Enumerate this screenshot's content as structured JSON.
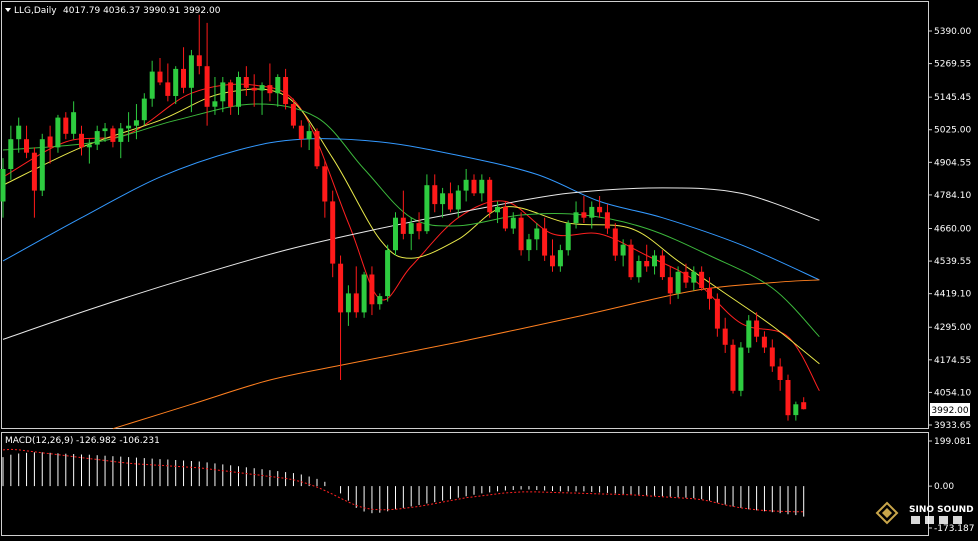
{
  "header": {
    "symbol": "LLG,Daily",
    "ohlc": "4017.79 4036.37 3990.91 3992.00"
  },
  "macd_header": {
    "label": "MACD(12,26,9)",
    "values": "-126.982 -106.231"
  },
  "watermark": {
    "text": "SINO SOUND"
  },
  "colors": {
    "background": "#000000",
    "bull_candle": "#2ecc40",
    "bear_candle": "#ff1a1a",
    "ma_red": "#ff2020",
    "ma_yellow": "#e8e84a",
    "ma_green": "#3cb83c",
    "ma_blue": "#3399ff",
    "ma_white": "#e8e8e8",
    "ma_orange": "#ff8020",
    "axis_text": "#ffffff",
    "macd_hist": "#ffffff",
    "macd_signal": "#ff2020"
  },
  "chart_data": [
    {
      "type": "candlestick",
      "title": "LLG,Daily",
      "y_ticks": [
        "5390.00",
        "5269.55",
        "5145.45",
        "5025.00",
        "4904.55",
        "4784.10",
        "4660.00",
        "4539.55",
        "4419.10",
        "4295.00",
        "4174.55",
        "4054.10",
        "3933.65"
      ],
      "ylim": [
        3900,
        5460
      ],
      "current_price_label": "3992.00",
      "current_price": 3992,
      "candles": [
        [
          4760,
          4920,
          4700,
          4880
        ],
        [
          4880,
          5040,
          4840,
          4990
        ],
        [
          4990,
          5070,
          4940,
          5040
        ],
        [
          4990,
          5040,
          4920,
          4940
        ],
        [
          4940,
          4960,
          4700,
          4800
        ],
        [
          4800,
          5010,
          4780,
          4990
        ],
        [
          5000,
          5040,
          4900,
          4960
        ],
        [
          4960,
          5080,
          4940,
          5070
        ],
        [
          5070,
          5090,
          4990,
          5010
        ],
        [
          5010,
          5130,
          4990,
          5090
        ],
        [
          5010,
          5040,
          4930,
          4960
        ],
        [
          4960,
          4990,
          4900,
          4970
        ],
        [
          4970,
          5040,
          4950,
          5020
        ],
        [
          5020,
          5050,
          4980,
          5030
        ],
        [
          5030,
          5040,
          4960,
          4980
        ],
        [
          4980,
          5050,
          4920,
          5030
        ],
        [
          5030,
          5090,
          4980,
          5040
        ],
        [
          5040,
          5120,
          4990,
          5060
        ],
        [
          5060,
          5160,
          5040,
          5140
        ],
        [
          5140,
          5280,
          5110,
          5240
        ],
        [
          5240,
          5290,
          5190,
          5200
        ],
        [
          5200,
          5270,
          5130,
          5150
        ],
        [
          5150,
          5260,
          5120,
          5250
        ],
        [
          5250,
          5330,
          5160,
          5180
        ],
        [
          5180,
          5320,
          5090,
          5300
        ],
        [
          5300,
          5450,
          5230,
          5260
        ],
        [
          5260,
          5420,
          5040,
          5110
        ],
        [
          5110,
          5220,
          5080,
          5130
        ],
        [
          5130,
          5220,
          5090,
          5200
        ],
        [
          5200,
          5210,
          5080,
          5110
        ],
        [
          5110,
          5240,
          5080,
          5220
        ],
        [
          5220,
          5260,
          5150,
          5180
        ],
        [
          5180,
          5230,
          5110,
          5170
        ],
        [
          5170,
          5200,
          5080,
          5190
        ],
        [
          5190,
          5270,
          5130,
          5160
        ],
        [
          5160,
          5230,
          5110,
          5220
        ],
        [
          5220,
          5250,
          5100,
          5120
        ],
        [
          5120,
          5140,
          5030,
          5040
        ],
        [
          5040,
          5060,
          4960,
          4990
        ],
        [
          4990,
          5050,
          4950,
          5020
        ],
        [
          5020,
          5030,
          4880,
          4890
        ],
        [
          4890,
          4910,
          4700,
          4760
        ],
        [
          4760,
          4800,
          4480,
          4530
        ],
        [
          4530,
          4560,
          4100,
          4350
        ],
        [
          4350,
          4450,
          4300,
          4420
        ],
        [
          4420,
          4520,
          4330,
          4350
        ],
        [
          4350,
          4500,
          4330,
          4490
        ],
        [
          4490,
          4520,
          4340,
          4380
        ],
        [
          4380,
          4420,
          4360,
          4410
        ],
        [
          4410,
          4600,
          4390,
          4580
        ],
        [
          4580,
          4720,
          4560,
          4700
        ],
        [
          4700,
          4800,
          4620,
          4640
        ],
        [
          4640,
          4700,
          4580,
          4680
        ],
        [
          4680,
          4720,
          4620,
          4650
        ],
        [
          4650,
          4860,
          4640,
          4820
        ],
        [
          4820,
          4860,
          4720,
          4750
        ],
        [
          4750,
          4810,
          4700,
          4790
        ],
        [
          4790,
          4830,
          4720,
          4730
        ],
        [
          4730,
          4820,
          4700,
          4800
        ],
        [
          4800,
          4880,
          4760,
          4840
        ],
        [
          4840,
          4860,
          4780,
          4790
        ],
        [
          4790,
          4860,
          4760,
          4840
        ],
        [
          4840,
          4850,
          4700,
          4720
        ],
        [
          4720,
          4760,
          4680,
          4740
        ],
        [
          4740,
          4760,
          4650,
          4660
        ],
        [
          4660,
          4720,
          4640,
          4700
        ],
        [
          4700,
          4720,
          4560,
          4580
        ],
        [
          4580,
          4640,
          4540,
          4620
        ],
        [
          4620,
          4680,
          4580,
          4660
        ],
        [
          4660,
          4700,
          4540,
          4560
        ],
        [
          4560,
          4620,
          4500,
          4520
        ],
        [
          4520,
          4600,
          4500,
          4580
        ],
        [
          4580,
          4690,
          4560,
          4680
        ],
        [
          4680,
          4760,
          4660,
          4720
        ],
        [
          4720,
          4780,
          4680,
          4700
        ],
        [
          4700,
          4760,
          4660,
          4740
        ],
        [
          4740,
          4780,
          4700,
          4720
        ],
        [
          4720,
          4750,
          4640,
          4660
        ],
        [
          4660,
          4680,
          4540,
          4560
        ],
        [
          4560,
          4620,
          4520,
          4600
        ],
        [
          4600,
          4620,
          4470,
          4480
        ],
        [
          4480,
          4560,
          4460,
          4540
        ],
        [
          4540,
          4600,
          4500,
          4520
        ],
        [
          4520,
          4580,
          4490,
          4560
        ],
        [
          4560,
          4580,
          4470,
          4480
        ],
        [
          4480,
          4520,
          4380,
          4420
        ],
        [
          4420,
          4520,
          4400,
          4500
        ],
        [
          4500,
          4530,
          4440,
          4460
        ],
        [
          4460,
          4520,
          4430,
          4500
        ],
        [
          4500,
          4520,
          4430,
          4440
        ],
        [
          4440,
          4480,
          4360,
          4400
        ],
        [
          4400,
          4420,
          4260,
          4290
        ],
        [
          4290,
          4330,
          4200,
          4230
        ],
        [
          4230,
          4250,
          4050,
          4060
        ],
        [
          4060,
          4240,
          4040,
          4220
        ],
        [
          4220,
          4340,
          4200,
          4320
        ],
        [
          4320,
          4350,
          4240,
          4260
        ],
        [
          4260,
          4280,
          4200,
          4220
        ],
        [
          4220,
          4250,
          4130,
          4150
        ],
        [
          4150,
          4180,
          4060,
          4100
        ],
        [
          4100,
          4120,
          3950,
          3970
        ],
        [
          3970,
          4020,
          3950,
          4010
        ],
        [
          4017.79,
          4036.37,
          3990.91,
          3992
        ]
      ],
      "moving_averages": [
        {
          "key": "ma_red",
          "points": [
            [
              0,
              4850
            ],
            [
              8,
              4980
            ],
            [
              16,
              5010
            ],
            [
              24,
              5160
            ],
            [
              32,
              5190
            ],
            [
              38,
              5100
            ],
            [
              44,
              4680
            ],
            [
              48,
              4400
            ],
            [
              52,
              4520
            ],
            [
              58,
              4700
            ],
            [
              64,
              4760
            ],
            [
              70,
              4640
            ],
            [
              76,
              4640
            ],
            [
              82,
              4560
            ],
            [
              88,
              4470
            ],
            [
              94,
              4310
            ],
            [
              100,
              4260
            ],
            [
              104,
              4060
            ]
          ]
        },
        {
          "key": "ma_yellow",
          "points": [
            [
              0,
              4820
            ],
            [
              10,
              4960
            ],
            [
              20,
              5060
            ],
            [
              28,
              5160
            ],
            [
              36,
              5150
            ],
            [
              42,
              4920
            ],
            [
              48,
              4620
            ],
            [
              52,
              4550
            ],
            [
              58,
              4620
            ],
            [
              64,
              4740
            ],
            [
              72,
              4680
            ],
            [
              80,
              4660
            ],
            [
              86,
              4540
            ],
            [
              92,
              4420
            ],
            [
              98,
              4300
            ],
            [
              104,
              4160
            ]
          ]
        },
        {
          "key": "ma_green",
          "points": [
            [
              0,
              4950
            ],
            [
              12,
              4980
            ],
            [
              22,
              5060
            ],
            [
              32,
              5120
            ],
            [
              40,
              5070
            ],
            [
              46,
              4880
            ],
            [
              52,
              4700
            ],
            [
              58,
              4670
            ],
            [
              66,
              4710
            ],
            [
              74,
              4710
            ],
            [
              82,
              4660
            ],
            [
              90,
              4560
            ],
            [
              98,
              4440
            ],
            [
              104,
              4260
            ]
          ]
        },
        {
          "key": "ma_blue",
          "points": [
            [
              0,
              4540
            ],
            [
              10,
              4700
            ],
            [
              20,
              4850
            ],
            [
              30,
              4950
            ],
            [
              38,
              4990
            ],
            [
              48,
              4980
            ],
            [
              58,
              4930
            ],
            [
              68,
              4860
            ],
            [
              76,
              4760
            ],
            [
              84,
              4700
            ],
            [
              94,
              4600
            ],
            [
              104,
              4470
            ]
          ]
        },
        {
          "key": "ma_white",
          "points": [
            [
              0,
              4250
            ],
            [
              12,
              4370
            ],
            [
              24,
              4480
            ],
            [
              36,
              4580
            ],
            [
              48,
              4660
            ],
            [
              60,
              4730
            ],
            [
              72,
              4790
            ],
            [
              84,
              4810
            ],
            [
              94,
              4790
            ],
            [
              104,
              4690
            ]
          ]
        },
        {
          "key": "ma_orange",
          "points": [
            [
              14,
              3920
            ],
            [
              24,
              4010
            ],
            [
              34,
              4100
            ],
            [
              44,
              4160
            ],
            [
              58,
              4240
            ],
            [
              74,
              4340
            ],
            [
              88,
              4430
            ],
            [
              98,
              4460
            ],
            [
              104,
              4470
            ]
          ]
        }
      ]
    },
    {
      "type": "bar",
      "title": "MACD(12,26,9)",
      "y_ticks": [
        "199.081",
        "0.00",
        "-173.187"
      ],
      "ylim": [
        -173.187,
        199.081
      ],
      "histogram": [
        120,
        130,
        135,
        138,
        140,
        140,
        138,
        136,
        134,
        133,
        131,
        130,
        128,
        126,
        124,
        122,
        120,
        118,
        116,
        114,
        112,
        110,
        108,
        106,
        104,
        102,
        98,
        94,
        90,
        86,
        82,
        78,
        74,
        70,
        66,
        62,
        58,
        54,
        48,
        40,
        30,
        18,
        0,
        -30,
        -60,
        -90,
        -105,
        -112,
        -110,
        -104,
        -96,
        -90,
        -84,
        -78,
        -72,
        -66,
        -60,
        -54,
        -48,
        -42,
        -36,
        -30,
        -26,
        -22,
        -18,
        -16,
        -14,
        -14,
        -16,
        -18,
        -20,
        -22,
        -22,
        -22,
        -22,
        -24,
        -26,
        -28,
        -30,
        -32,
        -34,
        -36,
        -38,
        -40,
        -42,
        -44,
        -46,
        -48,
        -50,
        -54,
        -60,
        -68,
        -76,
        -84,
        -90,
        -96,
        -100,
        -104,
        -108,
        -112,
        -116,
        -120,
        -126
      ],
      "signal": [
        150,
        152,
        150,
        146,
        142,
        138,
        134,
        130,
        126,
        122,
        118,
        114,
        110,
        106,
        102,
        98,
        95,
        92,
        90,
        88,
        86,
        84,
        82,
        80,
        78,
        76,
        72,
        68,
        64,
        60,
        56,
        52,
        48,
        44,
        40,
        36,
        32,
        26,
        18,
        8,
        -4,
        -18,
        -34,
        -50,
        -66,
        -80,
        -90,
        -96,
        -98,
        -98,
        -96,
        -92,
        -88,
        -84,
        -78,
        -72,
        -66,
        -60,
        -54,
        -48,
        -44,
        -40,
        -36,
        -32,
        -28,
        -26,
        -24,
        -24,
        -24,
        -25,
        -26,
        -27,
        -28,
        -29,
        -30,
        -31,
        -32,
        -33,
        -34,
        -35,
        -36,
        -38,
        -40,
        -42,
        -44,
        -46,
        -48,
        -50,
        -52,
        -56,
        -62,
        -70,
        -78,
        -84,
        -90,
        -94,
        -98,
        -101,
        -103,
        -104,
        -105,
        -106,
        -106
      ]
    }
  ]
}
